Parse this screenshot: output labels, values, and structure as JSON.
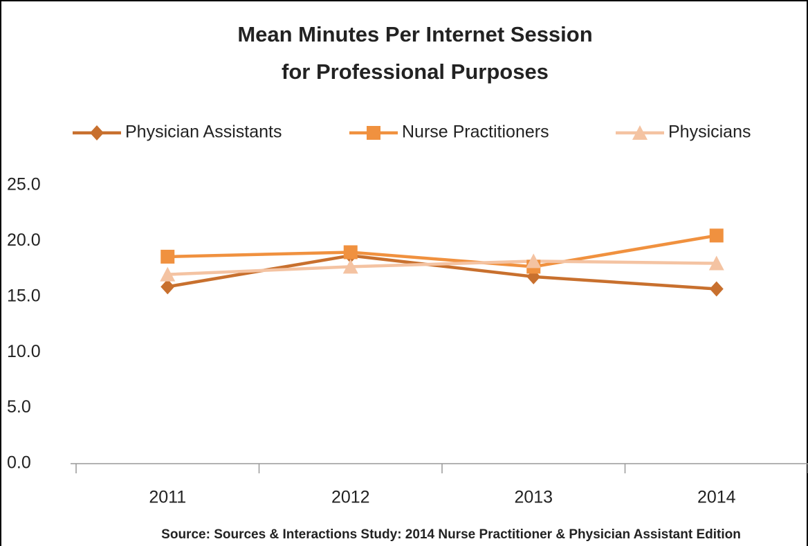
{
  "chart_data": {
    "type": "line",
    "title": [
      "Mean Minutes Per Internet Session",
      "for Professional Purposes"
    ],
    "categories": [
      "2011",
      "2012",
      "2013",
      "2014"
    ],
    "series": [
      {
        "name": "Physician Assistants",
        "color": "#c8702e",
        "marker": "diamond",
        "values": [
          15.9,
          18.7,
          16.8,
          15.7
        ]
      },
      {
        "name": "Nurse Practitioners",
        "color": "#f0913f",
        "marker": "square",
        "values": [
          18.6,
          19.0,
          17.7,
          20.5
        ]
      },
      {
        "name": "Physicians",
        "color": "#f4c3a2",
        "marker": "triangle",
        "values": [
          17.0,
          17.7,
          18.2,
          18.0
        ]
      }
    ],
    "ylim": [
      0,
      25
    ],
    "yticks": [
      {
        "value": 0,
        "label": "0.0"
      },
      {
        "value": 5,
        "label": "5.0"
      },
      {
        "value": 10,
        "label": "10.0"
      },
      {
        "value": 15,
        "label": "15.0"
      },
      {
        "value": 20,
        "label": "20.0"
      },
      {
        "value": 25,
        "label": "25.0"
      }
    ],
    "legend": "top",
    "grid": false,
    "source": "Source: Sources & Interactions Study: 2014 Nurse Practitioner & Physician Assistant Edition"
  }
}
